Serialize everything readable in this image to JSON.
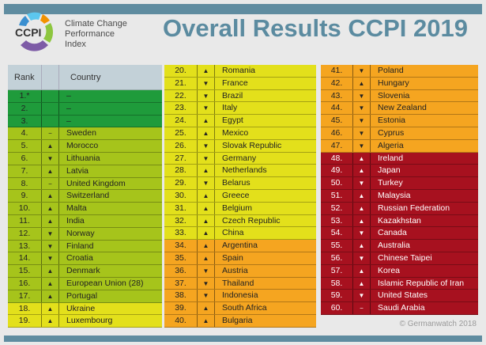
{
  "header": {
    "title": "Overall Results CCPI 2019",
    "logo_abbr": "CCPI",
    "logo_lines": [
      "Climate Change",
      "Performance",
      "Index"
    ]
  },
  "table_header": {
    "rank": "Rank",
    "trend": "",
    "country": "Country"
  },
  "colors": {
    "dark_green": "#1f9b3b",
    "green": "#a6c41b",
    "yellow": "#e3e01b",
    "orange": "#f5a520",
    "red": "#a7111f",
    "header": "#c3d1d8",
    "accent": "#5f8ca0"
  },
  "trend_icons": {
    "up": "▲",
    "down": "▼",
    "same": "−",
    "none": ""
  },
  "rows": [
    {
      "rank": "1.*",
      "trend": "none",
      "country": "–",
      "level": "dark_green"
    },
    {
      "rank": "2.",
      "trend": "none",
      "country": "–",
      "level": "dark_green"
    },
    {
      "rank": "3.",
      "trend": "none",
      "country": "–",
      "level": "dark_green"
    },
    {
      "rank": "4.",
      "trend": "same",
      "country": "Sweden",
      "level": "green"
    },
    {
      "rank": "5.",
      "trend": "up",
      "country": "Morocco",
      "level": "green"
    },
    {
      "rank": "6.",
      "trend": "down",
      "country": "Lithuania",
      "level": "green"
    },
    {
      "rank": "7.",
      "trend": "up",
      "country": "Latvia",
      "level": "green"
    },
    {
      "rank": "8.",
      "trend": "same",
      "country": "United Kingdom",
      "level": "green"
    },
    {
      "rank": "9.",
      "trend": "up",
      "country": "Switzerland",
      "level": "green"
    },
    {
      "rank": "10.",
      "trend": "up",
      "country": "Malta",
      "level": "green"
    },
    {
      "rank": "11.",
      "trend": "up",
      "country": "India",
      "level": "green"
    },
    {
      "rank": "12.",
      "trend": "down",
      "country": "Norway",
      "level": "green"
    },
    {
      "rank": "13.",
      "trend": "down",
      "country": "Finland",
      "level": "green"
    },
    {
      "rank": "14.",
      "trend": "down",
      "country": "Croatia",
      "level": "green"
    },
    {
      "rank": "15.",
      "trend": "up",
      "country": "Denmark",
      "level": "green"
    },
    {
      "rank": "16.",
      "trend": "up",
      "country": "European Union (28)",
      "level": "green"
    },
    {
      "rank": "17.",
      "trend": "up",
      "country": "Portugal",
      "level": "green"
    },
    {
      "rank": "18.",
      "trend": "up",
      "country": "Ukraine",
      "level": "yellow"
    },
    {
      "rank": "19.",
      "trend": "up",
      "country": "Luxembourg",
      "level": "yellow"
    },
    {
      "rank": "20.",
      "trend": "up",
      "country": "Romania",
      "level": "yellow"
    },
    {
      "rank": "21.",
      "trend": "down",
      "country": "France",
      "level": "yellow"
    },
    {
      "rank": "22.",
      "trend": "down",
      "country": "Brazil",
      "level": "yellow"
    },
    {
      "rank": "23.",
      "trend": "down",
      "country": "Italy",
      "level": "yellow"
    },
    {
      "rank": "24.",
      "trend": "up",
      "country": "Egypt",
      "level": "yellow"
    },
    {
      "rank": "25.",
      "trend": "up",
      "country": "Mexico",
      "level": "yellow"
    },
    {
      "rank": "26.",
      "trend": "down",
      "country": "Slovak Republic",
      "level": "yellow"
    },
    {
      "rank": "27.",
      "trend": "down",
      "country": "Germany",
      "level": "yellow"
    },
    {
      "rank": "28.",
      "trend": "up",
      "country": "Netherlands",
      "level": "yellow"
    },
    {
      "rank": "29.",
      "trend": "down",
      "country": "Belarus",
      "level": "yellow"
    },
    {
      "rank": "30.",
      "trend": "up",
      "country": "Greece",
      "level": "yellow"
    },
    {
      "rank": "31.",
      "trend": "up",
      "country": "Belgium",
      "level": "yellow"
    },
    {
      "rank": "32.",
      "trend": "up",
      "country": "Czech Republic",
      "level": "yellow"
    },
    {
      "rank": "33.",
      "trend": "up",
      "country": "China",
      "level": "yellow"
    },
    {
      "rank": "34.",
      "trend": "up",
      "country": "Argentina",
      "level": "orange"
    },
    {
      "rank": "35.",
      "trend": "up",
      "country": "Spain",
      "level": "orange"
    },
    {
      "rank": "36.",
      "trend": "down",
      "country": "Austria",
      "level": "orange"
    },
    {
      "rank": "37.",
      "trend": "down",
      "country": "Thailand",
      "level": "orange"
    },
    {
      "rank": "38.",
      "trend": "down",
      "country": "Indonesia",
      "level": "orange"
    },
    {
      "rank": "39.",
      "trend": "up",
      "country": "South Africa",
      "level": "orange"
    },
    {
      "rank": "40.",
      "trend": "up",
      "country": "Bulgaria",
      "level": "orange"
    },
    {
      "rank": "41.",
      "trend": "down",
      "country": "Poland",
      "level": "orange"
    },
    {
      "rank": "42.",
      "trend": "up",
      "country": "Hungary",
      "level": "orange"
    },
    {
      "rank": "43.",
      "trend": "down",
      "country": "Slovenia",
      "level": "orange"
    },
    {
      "rank": "44.",
      "trend": "down",
      "country": "New Zealand",
      "level": "orange"
    },
    {
      "rank": "45.",
      "trend": "down",
      "country": "Estonia",
      "level": "orange"
    },
    {
      "rank": "46.",
      "trend": "down",
      "country": "Cyprus",
      "level": "orange"
    },
    {
      "rank": "47.",
      "trend": "down",
      "country": "Algeria",
      "level": "orange"
    },
    {
      "rank": "48.",
      "trend": "up",
      "country": "Ireland",
      "level": "red"
    },
    {
      "rank": "49.",
      "trend": "up",
      "country": "Japan",
      "level": "red"
    },
    {
      "rank": "50.",
      "trend": "down",
      "country": "Turkey",
      "level": "red"
    },
    {
      "rank": "51.",
      "trend": "up",
      "country": "Malaysia",
      "level": "red"
    },
    {
      "rank": "52.",
      "trend": "up",
      "country": "Russian Federation",
      "level": "red"
    },
    {
      "rank": "53.",
      "trend": "up",
      "country": "Kazakhstan",
      "level": "red"
    },
    {
      "rank": "54.",
      "trend": "down",
      "country": "Canada",
      "level": "red"
    },
    {
      "rank": "55.",
      "trend": "up",
      "country": "Australia",
      "level": "red"
    },
    {
      "rank": "56.",
      "trend": "down",
      "country": "Chinese Taipei",
      "level": "red"
    },
    {
      "rank": "57.",
      "trend": "up",
      "country": "Korea",
      "level": "red"
    },
    {
      "rank": "58.",
      "trend": "up",
      "country": "Islamic Republic of Iran",
      "level": "red"
    },
    {
      "rank": "59.",
      "trend": "down",
      "country": "United States",
      "level": "red"
    },
    {
      "rank": "60.",
      "trend": "same",
      "country": "Saudi Arabia",
      "level": "red"
    }
  ],
  "footer": {
    "copyright": "© Germanwatch 2018"
  }
}
